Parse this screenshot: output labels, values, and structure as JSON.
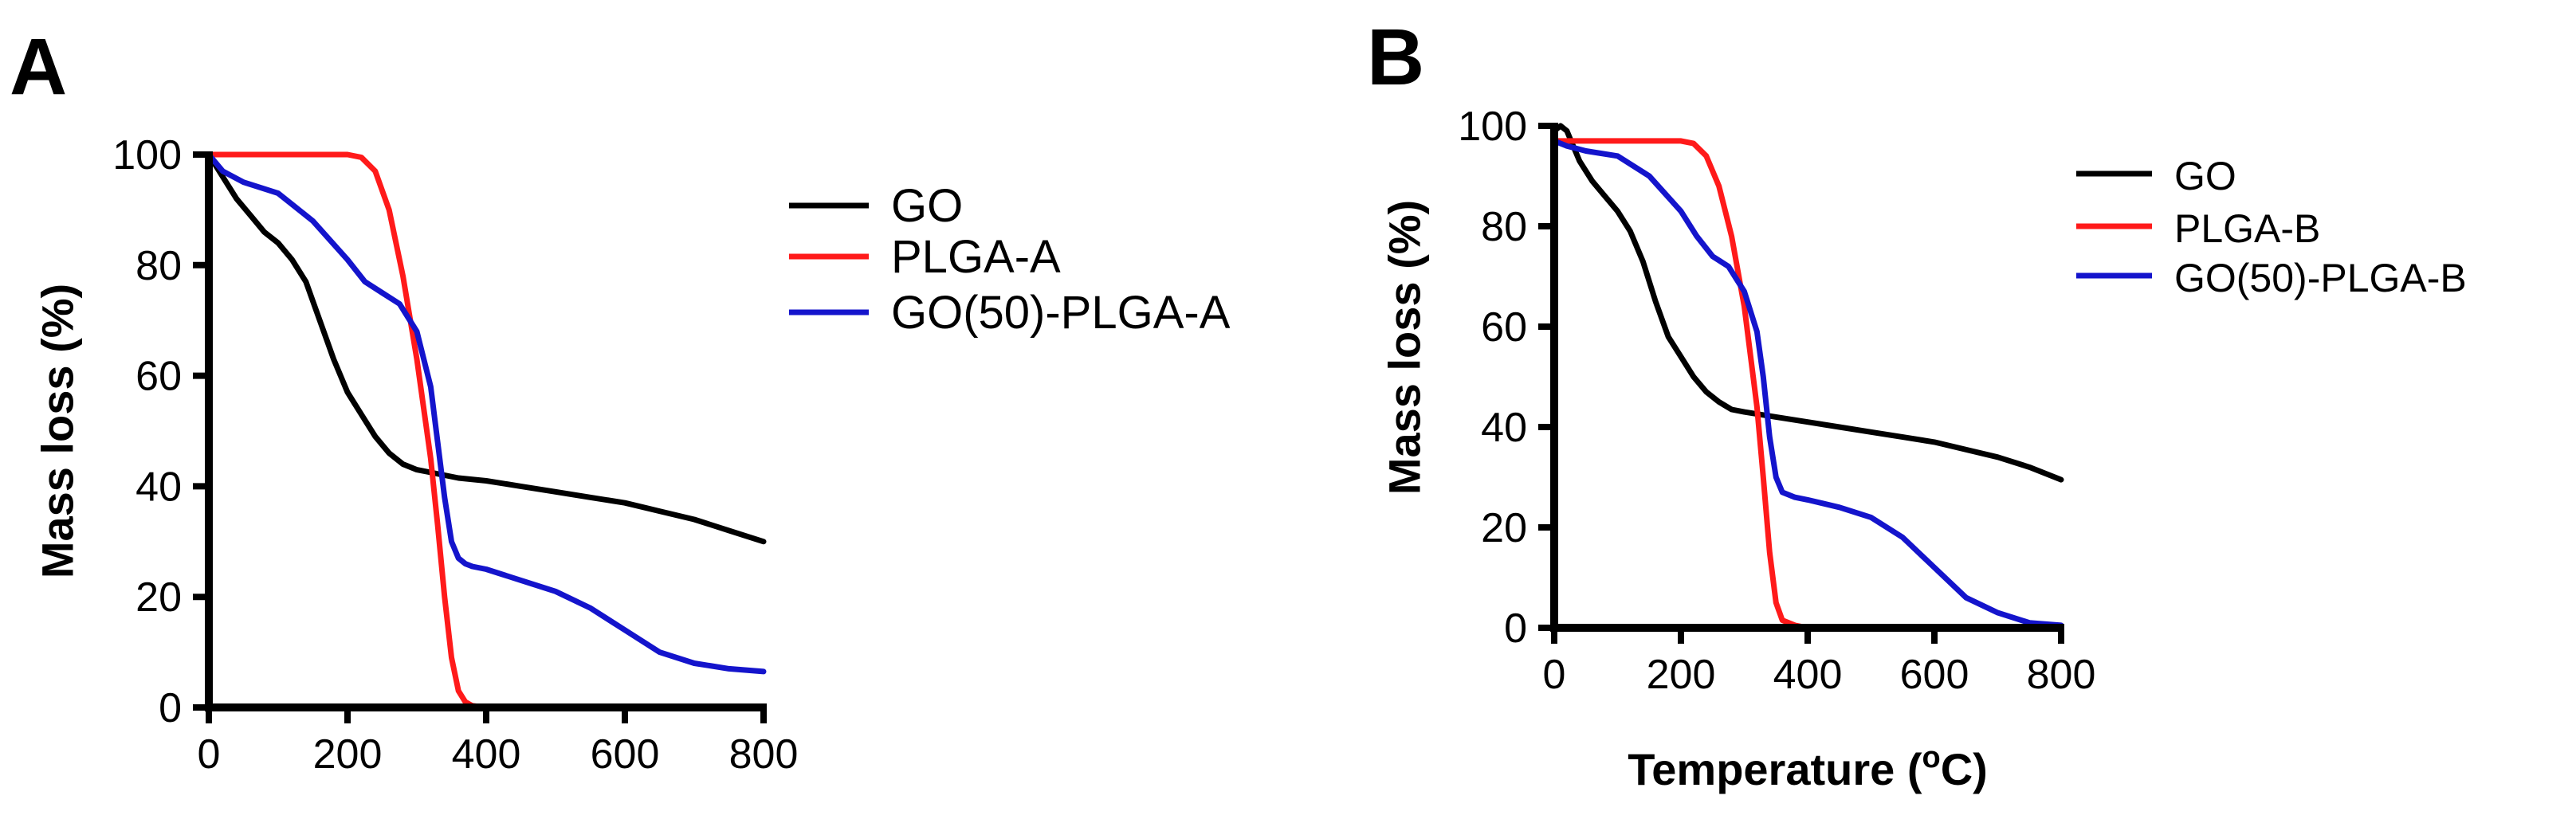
{
  "chart_data": [
    {
      "panel_label": "A",
      "type": "line",
      "title": "",
      "xlabel": "",
      "ylabel": "Mass loss (%)",
      "xlim": [
        0,
        800
      ],
      "ylim": [
        0,
        100
      ],
      "xticks": [
        0,
        200,
        400,
        600,
        800
      ],
      "yticks": [
        0,
        20,
        40,
        60,
        80,
        100
      ],
      "grid": false,
      "legend_position": "right",
      "series": [
        {
          "name": "GO",
          "color": "#000000",
          "x": [
            0,
            20,
            40,
            60,
            80,
            100,
            120,
            140,
            160,
            180,
            200,
            220,
            240,
            260,
            280,
            300,
            320,
            340,
            360,
            400,
            450,
            500,
            550,
            600,
            650,
            700,
            750,
            800
          ],
          "y": [
            100,
            96,
            92,
            89,
            86,
            84,
            81,
            77,
            70,
            63,
            57,
            53,
            49,
            46,
            44,
            43,
            42.5,
            42,
            41.5,
            41,
            40,
            39,
            38,
            37,
            35.5,
            34,
            32,
            30
          ]
        },
        {
          "name": "PLGA-A",
          "color": "#ff1a1a",
          "x": [
            0,
            100,
            200,
            220,
            240,
            260,
            280,
            300,
            320,
            330,
            340,
            350,
            360,
            370,
            380,
            400
          ],
          "y": [
            100,
            100,
            100,
            99.5,
            97,
            90,
            78,
            63,
            45,
            33,
            20,
            9,
            3,
            1,
            0.3,
            0
          ]
        },
        {
          "name": "GO(50)-PLGA-A",
          "color": "#1414cc",
          "x": [
            0,
            20,
            50,
            100,
            150,
            200,
            225,
            250,
            275,
            300,
            320,
            330,
            340,
            350,
            360,
            370,
            380,
            400,
            450,
            500,
            550,
            600,
            650,
            700,
            750,
            800
          ],
          "y": [
            100,
            97,
            95,
            93,
            88,
            81,
            77,
            75,
            73,
            68,
            58,
            48,
            38,
            30,
            27,
            26,
            25.5,
            25,
            23,
            21,
            18,
            14,
            10,
            8,
            7,
            6.5
          ]
        }
      ]
    },
    {
      "panel_label": "B",
      "type": "line",
      "title": "",
      "xlabel": "Temperature (°C)",
      "xlabel_main": "Temperature (",
      "xlabel_superscript": "o",
      "xlabel_tail": "C)",
      "ylabel": "Mass loss (%)",
      "xlim": [
        0,
        800
      ],
      "ylim": [
        0,
        100
      ],
      "xticks": [
        0,
        200,
        400,
        600,
        800
      ],
      "yticks": [
        0,
        20,
        40,
        60,
        80,
        100
      ],
      "grid": false,
      "legend_position": "right",
      "series": [
        {
          "name": "GO",
          "color": "#000000",
          "x": [
            0,
            10,
            20,
            30,
            40,
            60,
            80,
            100,
            120,
            140,
            160,
            180,
            200,
            220,
            240,
            260,
            280,
            300,
            350,
            400,
            450,
            500,
            550,
            600,
            650,
            700,
            750,
            800
          ],
          "y": [
            99,
            100,
            99,
            96,
            93,
            89,
            86,
            83,
            79,
            73,
            65,
            58,
            54,
            50,
            47,
            45,
            43.5,
            43,
            42,
            41,
            40,
            39,
            38,
            37,
            35.5,
            34,
            32,
            29.5
          ]
        },
        {
          "name": "PLGA-B",
          "color": "#ff1a1a",
          "x": [
            0,
            100,
            200,
            220,
            240,
            260,
            280,
            300,
            320,
            330,
            340,
            350,
            360,
            380,
            400
          ],
          "y": [
            97,
            97,
            97,
            96.5,
            94,
            88,
            78,
            64,
            44,
            30,
            15,
            5,
            1.5,
            0.5,
            0
          ]
        },
        {
          "name": "GO(50)-PLGA-B",
          "color": "#1414cc",
          "x": [
            0,
            20,
            50,
            100,
            150,
            200,
            225,
            250,
            275,
            300,
            320,
            330,
            340,
            350,
            360,
            380,
            400,
            450,
            500,
            550,
            600,
            650,
            700,
            750,
            800
          ],
          "y": [
            97,
            96,
            95,
            94,
            90,
            83,
            78,
            74,
            72,
            67,
            59,
            50,
            38,
            30,
            27,
            26,
            25.5,
            24,
            22,
            18,
            12,
            6,
            3,
            1,
            0.5
          ]
        }
      ]
    }
  ]
}
